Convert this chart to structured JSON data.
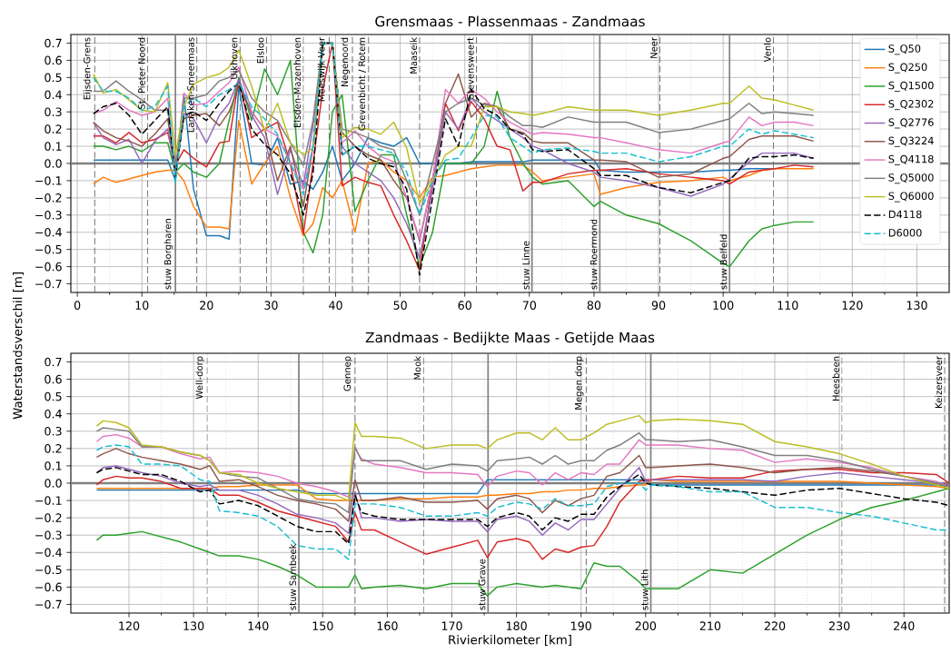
{
  "chart_data": [
    {
      "type": "line",
      "title": "Grensmaas - Plassenmaas - Zandmaas",
      "grid": true,
      "legend": "top right",
      "xlim": [
        -1,
        135
      ],
      "ylim": [
        -0.75,
        0.75
      ],
      "xticks": [
        0,
        10,
        20,
        30,
        40,
        50,
        60,
        70,
        80,
        90,
        100,
        110,
        120,
        130
      ],
      "yticks": [
        {
          "value": -0.7,
          "label": "−0.7"
        },
        {
          "value": -0.6,
          "label": "−0.6"
        },
        {
          "value": -0.5,
          "label": "−0.5"
        },
        {
          "value": -0.4,
          "label": "−0.4"
        },
        {
          "value": -0.3,
          "label": "−0.3"
        },
        {
          "value": -0.2,
          "label": "−0.2"
        },
        {
          "value": -0.1,
          "label": "−0.1"
        },
        {
          "value": 0.0,
          "label": "0.0"
        },
        0.1,
        0.2,
        0.3,
        0.4,
        0.5,
        0.6,
        0.7
      ],
      "x": [
        2.5,
        4,
        6,
        8,
        10,
        12,
        14,
        15.2,
        16.5,
        18,
        20,
        22,
        23.5,
        25,
        27,
        29,
        31,
        33,
        35,
        36.5,
        38,
        39.5,
        41,
        43,
        45,
        47,
        49,
        51,
        53,
        55,
        57,
        59,
        61,
        63,
        65,
        67,
        69,
        70.5,
        72,
        76,
        80,
        81,
        85,
        90,
        95,
        100,
        101,
        104,
        106,
        108,
        111,
        114
      ],
      "series": [
        {
          "name": "S_Q50",
          "color": "#1f77b4",
          "line_style": "solid",
          "values": [
            0.02,
            0.02,
            0.02,
            0.02,
            0.02,
            0.02,
            0.02,
            -0.1,
            0.4,
            -0.15,
            -0.42,
            -0.42,
            -0.44,
            0.45,
            0.0,
            -0.01,
            0.15,
            -0.12,
            -0.1,
            -0.15,
            -0.05,
            0.1,
            -0.1,
            0.0,
            0.15,
            0.12,
            0.1,
            0.15,
            0.0,
            0.0,
            0.0,
            0.0,
            0.01,
            0.01,
            0.01,
            0.01,
            0.01,
            0.02,
            0.02,
            0.02,
            0.02,
            -0.04,
            -0.05,
            -0.05,
            -0.05,
            -0.04,
            -0.04,
            -0.03,
            -0.03,
            -0.03,
            null,
            null
          ]
        },
        {
          "name": "S_Q250",
          "color": "#ff7f0e",
          "line_style": "solid",
          "values": [
            -0.12,
            -0.08,
            -0.11,
            -0.09,
            -0.07,
            -0.05,
            -0.04,
            -0.04,
            -0.1,
            -0.25,
            -0.37,
            -0.37,
            -0.38,
            0.25,
            -0.12,
            0.0,
            0.1,
            -0.2,
            -0.42,
            -0.35,
            -0.14,
            -0.2,
            -0.1,
            -0.4,
            0.0,
            0.02,
            -0.05,
            -0.1,
            -0.2,
            -0.08,
            -0.07,
            -0.05,
            -0.03,
            -0.02,
            -0.01,
            -0.01,
            -0.01,
            -0.05,
            -0.1,
            -0.08,
            -0.06,
            -0.18,
            -0.14,
            -0.11,
            -0.1,
            -0.08,
            -0.1,
            -0.07,
            -0.04,
            -0.03,
            -0.03,
            -0.03
          ]
        },
        {
          "name": "S_Q1500",
          "color": "#2ca02c",
          "line_style": "solid",
          "values": [
            0.1,
            0.1,
            0.08,
            0.1,
            0.07,
            0.12,
            0.12,
            -0.05,
            0.0,
            -0.05,
            -0.08,
            0.0,
            0.25,
            0.5,
            0.25,
            0.55,
            0.4,
            0.6,
            -0.4,
            -0.52,
            -0.3,
            0.3,
            0.4,
            -0.28,
            -0.1,
            0.05,
            0.05,
            -0.3,
            -0.6,
            -0.4,
            0.0,
            0.0,
            0.0,
            0.1,
            0.42,
            0.15,
            0.0,
            -0.08,
            -0.12,
            -0.1,
            -0.25,
            -0.22,
            -0.3,
            -0.35,
            -0.45,
            -0.58,
            -0.6,
            -0.45,
            -0.38,
            -0.36,
            -0.34,
            -0.34
          ]
        },
        {
          "name": "S_Q2302",
          "color": "#d62728",
          "line_style": "solid",
          "values": [
            0.16,
            0.16,
            0.12,
            0.18,
            0.12,
            0.14,
            0.18,
            -0.01,
            0.08,
            0.03,
            -0.02,
            0.12,
            0.13,
            0.49,
            0.15,
            0.2,
            0.24,
            0.0,
            -0.41,
            0.0,
            0.43,
            0.7,
            -0.13,
            -0.08,
            -0.11,
            -0.13,
            -0.3,
            -0.45,
            -0.62,
            -0.1,
            0.35,
            0.19,
            0.36,
            0.26,
            0.1,
            0.08,
            -0.16,
            -0.11,
            -0.11,
            -0.06,
            -0.04,
            -0.04,
            -0.03,
            -0.06,
            -0.08,
            -0.1,
            -0.12,
            -0.05,
            -0.04,
            -0.03,
            -0.01,
            -0.02
          ]
        },
        {
          "name": "S_Q2776",
          "color": "#9467bd",
          "line_style": "solid",
          "values": [
            0.24,
            0.15,
            0.11,
            0.14,
            0.0,
            0.13,
            0.2,
            -0.06,
            0.29,
            0.26,
            0.12,
            0.28,
            0.35,
            0.49,
            0.28,
            0.15,
            -0.18,
            0.08,
            -0.13,
            0.22,
            0.7,
            0.7,
            0.1,
            0.0,
            -0.05,
            -0.1,
            -0.2,
            -0.35,
            -0.55,
            -0.15,
            0.3,
            0.2,
            0.38,
            0.3,
            0.25,
            0.2,
            0.15,
            0.1,
            0.08,
            0.0,
            -0.05,
            -0.08,
            -0.1,
            -0.14,
            -0.19,
            -0.12,
            -0.09,
            0.01,
            0.06,
            0.06,
            0.06,
            0.03
          ]
        },
        {
          "name": "S_Q3224",
          "color": "#8c564b",
          "line_style": "solid",
          "values": [
            0.24,
            0.19,
            0.15,
            0.13,
            0.1,
            0.17,
            0.26,
            -0.04,
            0.26,
            0.28,
            0.29,
            0.22,
            0.3,
            0.45,
            0.3,
            0.2,
            -0.1,
            0.1,
            -0.25,
            0.1,
            0.7,
            0.7,
            0.18,
            0.1,
            0.05,
            0.02,
            -0.1,
            -0.2,
            -0.45,
            -0.1,
            0.35,
            0.52,
            0.27,
            0.35,
            0.33,
            0.2,
            0.18,
            0.13,
            0.12,
            0.12,
            0.02,
            0.02,
            0.01,
            -0.08,
            -0.06,
            0.03,
            0.04,
            0.14,
            0.16,
            0.16,
            0.16,
            0.13
          ]
        },
        {
          "name": "S_Q4118",
          "color": "#e377c2",
          "line_style": "solid",
          "values": [
            0.29,
            0.31,
            0.36,
            0.31,
            0.28,
            0.3,
            0.38,
            -0.06,
            0.41,
            0.34,
            0.35,
            0.42,
            0.47,
            0.56,
            0.3,
            0.2,
            0.16,
            0.0,
            -0.15,
            0.1,
            0.7,
            0.7,
            0.12,
            0.19,
            0.1,
            0.04,
            0.01,
            -0.2,
            -0.44,
            -0.1,
            0.43,
            0.35,
            0.43,
            0.38,
            0.3,
            0.24,
            0.2,
            0.17,
            0.18,
            0.17,
            0.15,
            0.15,
            0.12,
            0.08,
            0.06,
            0.12,
            0.13,
            0.27,
            0.22,
            0.24,
            0.24,
            0.22
          ]
        },
        {
          "name": "S_Q5000",
          "color": "#7f7f7f",
          "line_style": "solid",
          "values": [
            0.42,
            0.42,
            0.48,
            0.42,
            0.37,
            0.31,
            0.31,
            -0.04,
            0.38,
            0.38,
            0.4,
            0.48,
            0.5,
            0.54,
            0.38,
            0.3,
            0.25,
            0.12,
            -0.01,
            0.25,
            0.7,
            0.7,
            0.2,
            0.18,
            0.15,
            0.1,
            0.08,
            -0.1,
            -0.3,
            0.0,
            0.3,
            0.35,
            0.38,
            0.34,
            0.33,
            0.27,
            0.22,
            0.22,
            0.21,
            0.27,
            0.24,
            0.24,
            0.24,
            0.18,
            0.2,
            0.25,
            0.26,
            0.35,
            0.29,
            0.3,
            0.29,
            0.28
          ]
        },
        {
          "name": "S_Q6000",
          "color": "#bcbd22",
          "line_style": "solid",
          "values": [
            0.52,
            0.41,
            0.43,
            0.37,
            0.31,
            0.3,
            0.47,
            0.05,
            0.33,
            0.46,
            0.5,
            0.52,
            0.56,
            0.66,
            0.45,
            0.19,
            0.35,
            0.12,
            0.05,
            0.09,
            0.7,
            0.7,
            0.15,
            0.21,
            0.2,
            0.17,
            0.24,
            0.09,
            -0.23,
            -0.1,
            0.05,
            0.1,
            0.1,
            0.33,
            0.33,
            0.3,
            0.29,
            0.28,
            0.29,
            0.33,
            0.31,
            0.31,
            0.31,
            0.28,
            0.31,
            0.35,
            0.35,
            0.45,
            0.38,
            0.37,
            0.34,
            0.31
          ]
        },
        {
          "name": "D4118",
          "color": "#000000",
          "line_style": "dashed",
          "values": [
            0.29,
            0.33,
            0.35,
            0.28,
            0.17,
            0.25,
            0.33,
            -0.08,
            0.28,
            0.3,
            0.25,
            0.35,
            0.42,
            0.47,
            0.2,
            0.11,
            0.05,
            -0.06,
            -0.3,
            -0.06,
            0.7,
            0.7,
            0.05,
            0.1,
            0.03,
            0.0,
            -0.02,
            -0.15,
            -0.65,
            -0.2,
            0.26,
            0.1,
            0.43,
            0.32,
            0.28,
            0.2,
            0.17,
            0.08,
            0.07,
            0.08,
            -0.03,
            -0.07,
            -0.07,
            -0.14,
            -0.17,
            -0.11,
            -0.1,
            0.03,
            0.04,
            0.04,
            0.05,
            0.03
          ]
        },
        {
          "name": "D6000",
          "color": "#17becf",
          "line_style": "dashed",
          "values": [
            0.5,
            0.42,
            0.42,
            0.38,
            0.31,
            0.33,
            0.45,
            -0.11,
            0.33,
            0.38,
            0.33,
            0.4,
            0.43,
            0.47,
            0.33,
            0.26,
            0.17,
            0.0,
            -0.18,
            0.1,
            0.7,
            0.7,
            0.05,
            0.1,
            0.1,
            0.08,
            0.06,
            -0.05,
            -0.3,
            -0.1,
            0.02,
            0.03,
            0.15,
            0.28,
            0.27,
            0.15,
            0.1,
            0.06,
            0.08,
            0.09,
            0.07,
            0.06,
            0.06,
            0.01,
            0.04,
            0.1,
            0.1,
            0.2,
            0.17,
            0.19,
            0.17,
            0.15
          ]
        }
      ],
      "ref_lines": [
        {
          "axis": "y",
          "value": 0,
          "color": "#808080",
          "line_style": "solid"
        },
        {
          "axis": "x",
          "value": 2.7,
          "label": "Eijsden-Grens",
          "color": "#666666",
          "line_style": "dashed"
        },
        {
          "axis": "x",
          "value": 10.9,
          "label": "St. Pieter Noord",
          "color": "#666666",
          "line_style": "dashed"
        },
        {
          "axis": "x",
          "value": 15.2,
          "label": "stuw Borgharen",
          "color": "#808080",
          "line_style": "solid"
        },
        {
          "axis": "x",
          "value": 18.5,
          "label": "Lanaken-Smeermaas",
          "color": "#666666",
          "line_style": "dashed"
        },
        {
          "axis": "x",
          "value": 25.2,
          "label": "Uikhoven",
          "color": "#666666",
          "line_style": "dashed"
        },
        {
          "axis": "x",
          "value": 29.3,
          "label": "Elsloo",
          "color": "#666666",
          "line_style": "dashed"
        },
        {
          "axis": "x",
          "value": 35.0,
          "label": "Elsden-Mazenhoven",
          "color": "#666666",
          "line_style": "dashed"
        },
        {
          "axis": "x",
          "value": 39.0,
          "label": "Meeswijk Veer",
          "color": "#666666",
          "line_style": "dashed"
        },
        {
          "axis": "x",
          "value": 42.6,
          "label": "Negenoord",
          "color": "#666666",
          "line_style": "dashed"
        },
        {
          "axis": "x",
          "value": 45.1,
          "label": "Grevenbicht / Rotem",
          "color": "#666666",
          "line_style": "dashed"
        },
        {
          "axis": "x",
          "value": 53.0,
          "label": "Maaseik",
          "color": "#666666",
          "line_style": "dashed"
        },
        {
          "axis": "x",
          "value": 61.8,
          "label": "Stevensweert",
          "color": "#666666",
          "line_style": "dashed"
        },
        {
          "axis": "x",
          "value": 70.4,
          "label": "stuw Linne",
          "color": "#808080",
          "line_style": "solid"
        },
        {
          "axis": "x",
          "value": 80.9,
          "label": "stuw Roermond",
          "color": "#808080",
          "line_style": "solid"
        },
        {
          "axis": "x",
          "value": 90.2,
          "label": "Neer",
          "color": "#666666",
          "line_style": "dashed"
        },
        {
          "axis": "x",
          "value": 101.0,
          "label": "stuw Belfeld",
          "color": "#808080",
          "line_style": "solid"
        },
        {
          "axis": "x",
          "value": 107.8,
          "label": "Venlo",
          "color": "#666666",
          "line_style": "dashed"
        }
      ]
    },
    {
      "type": "line",
      "title": "Zandmaas - Bedijkte Maas - Getijde Maas",
      "xlabel": "Rivierkilometer [km]",
      "ylabel": "Waterstandsverschil [m]",
      "grid": true,
      "xlim": [
        111,
        247
      ],
      "ylim": [
        -0.75,
        0.75
      ],
      "xticks": [
        120,
        130,
        140,
        150,
        160,
        170,
        180,
        190,
        200,
        210,
        220,
        230,
        240
      ],
      "yticks": [
        {
          "value": -0.7,
          "label": "−0.7"
        },
        {
          "value": -0.6,
          "label": "−0.6"
        },
        {
          "value": -0.5,
          "label": "−0.5"
        },
        {
          "value": -0.4,
          "label": "−0.4"
        },
        {
          "value": -0.3,
          "label": "−0.3"
        },
        {
          "value": -0.2,
          "label": "−0.2"
        },
        {
          "value": -0.1,
          "label": "−0.1"
        },
        {
          "value": 0.0,
          "label": "0.0"
        },
        0.1,
        0.2,
        0.3,
        0.4,
        0.5,
        0.6,
        0.7
      ],
      "x": [
        115,
        116,
        118,
        120,
        122,
        125,
        128,
        131,
        132.5,
        134,
        137,
        140,
        143,
        146,
        149,
        152,
        154,
        155,
        156,
        158,
        162,
        166,
        170,
        174,
        175.5,
        177,
        180,
        182,
        184,
        186,
        188,
        190,
        192,
        194,
        196,
        199,
        200,
        201,
        205,
        210,
        215,
        220,
        225,
        230,
        235,
        240,
        245,
        247
      ],
      "series": [
        {
          "color": "#1f77b4",
          "line_style": "solid",
          "values": [
            -0.04,
            -0.04,
            -0.04,
            -0.04,
            -0.04,
            -0.04,
            -0.04,
            -0.04,
            -0.04,
            -0.04,
            -0.04,
            -0.04,
            -0.04,
            -0.04,
            -0.06,
            -0.06,
            -0.06,
            -0.06,
            -0.06,
            -0.06,
            -0.06,
            -0.06,
            -0.06,
            -0.06,
            0.02,
            0.02,
            0.02,
            0.02,
            0.02,
            0.02,
            0.02,
            0.02,
            0.02,
            0.02,
            0.02,
            0.02,
            0.02,
            -0.01,
            -0.01,
            -0.01,
            -0.01,
            -0.01,
            -0.01,
            -0.01,
            -0.01,
            -0.01,
            -0.01,
            -0.02
          ]
        },
        {
          "color": "#ff7f0e",
          "line_style": "solid",
          "values": [
            -0.03,
            -0.03,
            -0.03,
            -0.03,
            -0.03,
            -0.03,
            -0.03,
            -0.03,
            -0.03,
            -0.02,
            -0.02,
            -0.01,
            -0.01,
            -0.01,
            -0.09,
            -0.1,
            -0.1,
            -0.1,
            -0.1,
            -0.1,
            -0.09,
            -0.09,
            -0.08,
            -0.08,
            -0.07,
            -0.07,
            -0.06,
            -0.06,
            -0.05,
            -0.05,
            -0.04,
            -0.04,
            -0.03,
            -0.03,
            -0.02,
            -0.01,
            -0.01,
            0.02,
            0.01,
            0.01,
            0.01,
            0.01,
            0.01,
            0.01,
            0.0,
            -0.01,
            -0.02,
            -0.03
          ]
        },
        {
          "color": "#2ca02c",
          "line_style": "solid",
          "values": [
            -0.33,
            -0.3,
            -0.3,
            -0.29,
            -0.28,
            -0.31,
            -0.34,
            -0.38,
            -0.4,
            -0.42,
            -0.42,
            -0.44,
            -0.48,
            -0.53,
            -0.6,
            -0.6,
            -0.6,
            -0.53,
            -0.61,
            -0.6,
            -0.59,
            -0.61,
            -0.58,
            -0.58,
            -0.65,
            -0.6,
            -0.58,
            -0.59,
            -0.6,
            -0.59,
            -0.6,
            -0.61,
            -0.46,
            -0.48,
            -0.48,
            -0.57,
            -0.61,
            -0.61,
            -0.61,
            -0.5,
            -0.52,
            -0.41,
            -0.3,
            -0.21,
            -0.14,
            -0.1,
            -0.05,
            -0.03
          ]
        },
        {
          "color": "#d62728",
          "line_style": "solid",
          "values": [
            -0.01,
            0.02,
            0.04,
            0.03,
            0.03,
            0.01,
            -0.03,
            -0.03,
            -0.03,
            -0.07,
            -0.07,
            -0.11,
            -0.16,
            -0.19,
            -0.22,
            -0.25,
            -0.34,
            -0.17,
            -0.27,
            -0.27,
            -0.34,
            -0.41,
            -0.37,
            -0.33,
            -0.43,
            -0.34,
            -0.32,
            -0.34,
            -0.44,
            -0.38,
            -0.4,
            -0.37,
            -0.36,
            -0.25,
            -0.11,
            0.01,
            0.02,
            0.02,
            0.04,
            0.03,
            0.03,
            0.07,
            0.08,
            0.08,
            0.06,
            0.06,
            0.05,
            0.0
          ]
        },
        {
          "color": "#9467bd",
          "line_style": "solid",
          "values": [
            0.06,
            0.09,
            0.1,
            0.08,
            0.06,
            0.04,
            0.0,
            -0.02,
            -0.01,
            -0.04,
            -0.04,
            -0.07,
            -0.12,
            -0.18,
            -0.2,
            -0.23,
            -0.29,
            -0.05,
            -0.2,
            -0.2,
            -0.22,
            -0.21,
            -0.22,
            -0.22,
            -0.28,
            -0.21,
            -0.19,
            -0.22,
            -0.3,
            -0.23,
            -0.27,
            -0.21,
            -0.21,
            -0.12,
            -0.03,
            0.09,
            0.01,
            0.02,
            0.02,
            0.02,
            0.02,
            0.01,
            0.04,
            0.06,
            0.04,
            0.02,
            0.0,
            -0.01
          ]
        },
        {
          "color": "#8c564b",
          "line_style": "solid",
          "values": [
            0.15,
            0.17,
            0.2,
            0.17,
            0.15,
            0.13,
            0.11,
            0.08,
            0.1,
            0.01,
            0.02,
            -0.02,
            -0.07,
            -0.1,
            -0.12,
            -0.15,
            -0.22,
            0.02,
            -0.1,
            -0.1,
            -0.08,
            -0.11,
            -0.11,
            -0.1,
            -0.15,
            -0.09,
            -0.07,
            -0.09,
            -0.17,
            -0.1,
            -0.13,
            -0.09,
            -0.07,
            0.04,
            0.06,
            0.16,
            0.09,
            0.09,
            0.1,
            0.11,
            0.09,
            0.06,
            0.08,
            0.09,
            0.07,
            0.04,
            0.0,
            -0.01
          ]
        },
        {
          "color": "#e377c2",
          "line_style": "solid",
          "values": [
            0.24,
            0.27,
            0.28,
            0.26,
            0.21,
            0.21,
            0.17,
            0.14,
            0.15,
            0.06,
            0.07,
            0.06,
            0.04,
            0.0,
            -0.02,
            -0.05,
            -0.08,
            0.2,
            0.14,
            0.11,
            0.09,
            0.06,
            0.06,
            0.05,
            -0.02,
            0.04,
            0.07,
            0.06,
            -0.01,
            0.06,
            0.02,
            0.06,
            0.05,
            0.11,
            0.11,
            0.25,
            0.22,
            0.22,
            0.22,
            0.2,
            0.19,
            0.12,
            0.14,
            0.12,
            0.09,
            0.04,
            0.01,
            -0.02
          ]
        },
        {
          "color": "#7f7f7f",
          "line_style": "solid",
          "values": [
            0.3,
            0.32,
            0.31,
            0.3,
            0.21,
            0.21,
            0.18,
            0.16,
            0.13,
            0.06,
            0.04,
            0.03,
            -0.03,
            -0.09,
            -0.11,
            -0.12,
            -0.17,
            0.21,
            0.13,
            0.13,
            0.13,
            0.08,
            0.11,
            0.1,
            0.07,
            0.13,
            0.14,
            0.15,
            0.11,
            0.16,
            0.11,
            0.13,
            0.13,
            0.19,
            0.22,
            0.29,
            0.25,
            0.25,
            0.24,
            0.25,
            0.21,
            0.16,
            0.16,
            0.13,
            0.08,
            0.04,
            0.0,
            -0.02
          ]
        },
        {
          "color": "#bcbd22",
          "line_style": "solid",
          "values": [
            0.33,
            0.36,
            0.35,
            0.32,
            0.22,
            0.21,
            0.18,
            0.16,
            0.13,
            0.06,
            0.05,
            0.0,
            -0.03,
            -0.05,
            -0.07,
            -0.07,
            -0.1,
            0.35,
            0.27,
            0.27,
            0.26,
            0.2,
            0.22,
            0.22,
            0.2,
            0.25,
            0.29,
            0.29,
            0.25,
            0.32,
            0.25,
            0.25,
            0.29,
            0.34,
            0.36,
            0.39,
            0.35,
            0.36,
            0.37,
            0.36,
            0.34,
            0.24,
            0.21,
            0.17,
            0.11,
            0.04,
            -0.01,
            -0.03
          ]
        },
        {
          "color": "#000000",
          "line_style": "dashed",
          "values": [
            0.06,
            0.08,
            0.09,
            0.07,
            0.05,
            0.05,
            0.01,
            -0.05,
            -0.04,
            -0.12,
            -0.1,
            -0.13,
            -0.19,
            -0.25,
            -0.28,
            -0.28,
            -0.35,
            -0.07,
            -0.17,
            -0.19,
            -0.21,
            -0.21,
            -0.21,
            -0.21,
            -0.25,
            -0.2,
            -0.17,
            -0.19,
            -0.27,
            -0.2,
            -0.22,
            -0.18,
            -0.18,
            -0.08,
            -0.02,
            0.05,
            0.0,
            -0.01,
            -0.02,
            -0.03,
            -0.05,
            -0.07,
            -0.04,
            -0.03,
            -0.06,
            -0.09,
            -0.11,
            -0.13
          ]
        },
        {
          "color": "#17becf",
          "line_style": "dashed",
          "values": [
            0.19,
            0.21,
            0.22,
            0.21,
            0.11,
            0.11,
            0.1,
            0.02,
            0.01,
            -0.16,
            -0.17,
            -0.19,
            -0.25,
            -0.36,
            -0.38,
            -0.38,
            -0.44,
            -0.12,
            -0.12,
            -0.12,
            -0.14,
            -0.19,
            -0.19,
            -0.17,
            -0.19,
            -0.14,
            -0.11,
            -0.12,
            -0.15,
            -0.09,
            -0.13,
            -0.13,
            -0.12,
            -0.02,
            0.0,
            0.0,
            -0.04,
            -0.01,
            -0.02,
            -0.05,
            -0.05,
            -0.14,
            -0.14,
            -0.17,
            -0.19,
            -0.23,
            -0.27,
            -0.27
          ]
        }
      ],
      "ref_lines": [
        {
          "axis": "y",
          "value": 0,
          "color": "#808080",
          "line_style": "solid"
        },
        {
          "axis": "x",
          "value": 132.1,
          "label": "Well-dorp",
          "color": "#666666",
          "line_style": "dashed"
        },
        {
          "axis": "x",
          "value": 146.3,
          "label": "stuw Sambeek",
          "color": "#808080",
          "line_style": "solid"
        },
        {
          "axis": "x",
          "value": 155.0,
          "label": "Gennep",
          "color": "#666666",
          "line_style": "dashed"
        },
        {
          "axis": "x",
          "value": 165.6,
          "label": "Mook",
          "color": "#666666",
          "line_style": "dashed"
        },
        {
          "axis": "x",
          "value": 175.6,
          "label": "stuw Grave",
          "color": "#808080",
          "line_style": "solid"
        },
        {
          "axis": "x",
          "value": 190.8,
          "label": "Megen dorp",
          "color": "#666666",
          "line_style": "dashed"
        },
        {
          "axis": "x",
          "value": 200.8,
          "label": "stuw Lith",
          "color": "#808080",
          "line_style": "solid"
        },
        {
          "axis": "x",
          "value": 230.4,
          "label": "Heesbeen",
          "color": "#666666",
          "line_style": "dashed"
        },
        {
          "axis": "x",
          "value": 246.3,
          "label": "Keizersveer",
          "color": "#666666",
          "line_style": "dashed"
        }
      ]
    }
  ]
}
